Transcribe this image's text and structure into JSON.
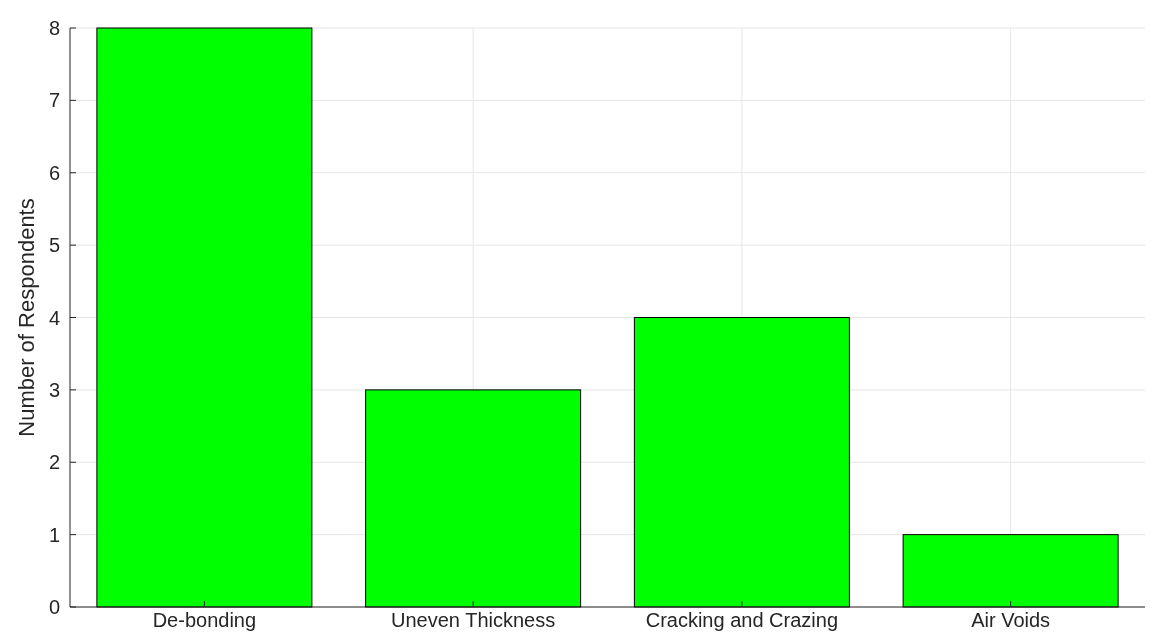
{
  "chart_data": {
    "type": "bar",
    "ylabel": "Number of Respondents",
    "categories": [
      "De-bonding",
      "Uneven Thickness",
      "Cracking and Crazing",
      "Air Voids"
    ],
    "values": [
      8,
      3,
      4,
      1
    ],
    "color": "#00ff00",
    "ylim": [
      0,
      8
    ],
    "yticks": [
      0,
      1,
      2,
      3,
      4,
      5,
      6,
      7,
      8
    ],
    "grid": true
  }
}
